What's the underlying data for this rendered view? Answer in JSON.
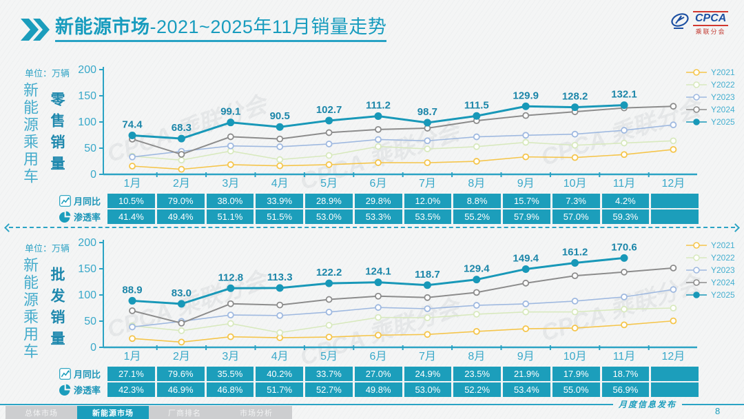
{
  "header": {
    "title_bold": "新能源市场",
    "title_rest": "-2021~2025年11月销量走势",
    "logo_text": "CPCA",
    "logo_subtext": "乘联分会"
  },
  "colors": {
    "accent_teal": "#1B9DBC",
    "axis_teal": "#2AA3C4",
    "tick_label_teal": "#38A8C9",
    "data_label_teal": "#1C86A9",
    "table_cell_teal": "#1C9EBB",
    "legend_text": "#45AFD0"
  },
  "chart_data": [
    {
      "type": "line",
      "title": "零售销量",
      "group_label": "新能源乘用车",
      "unit_label": "单位：万辆",
      "categories": [
        "1月",
        "2月",
        "3月",
        "4月",
        "5月",
        "6月",
        "7月",
        "8月",
        "9月",
        "10月",
        "11月",
        "12月"
      ],
      "ylim": [
        0,
        200
      ],
      "yticks": [
        0,
        50,
        100,
        150,
        200
      ],
      "grid": false,
      "legend_position": "right-top",
      "series": [
        {
          "name": "Y2021",
          "color": "#F5C54B",
          "labeled": false,
          "values": [
            15.8,
            9.7,
            18.5,
            16.3,
            18.5,
            22.3,
            22.2,
            24.9,
            33.4,
            32.1,
            37.8,
            47.5
          ]
        },
        {
          "name": "Y2022",
          "color": "#D8E9BE",
          "labeled": false,
          "values": [
            34.7,
            27.2,
            44.5,
            28.2,
            36.0,
            53.2,
            48.6,
            52.9,
            61.1,
            55.6,
            59.8,
            64.0
          ]
        },
        {
          "name": "Y2023",
          "color": "#9FB9E0",
          "labeled": false,
          "values": [
            33.2,
            43.9,
            54.3,
            52.7,
            58.0,
            66.5,
            64.1,
            71.6,
            74.6,
            76.7,
            84.1,
            94.5
          ]
        },
        {
          "name": "Y2024",
          "color": "#8C8C8C",
          "labeled": false,
          "values": [
            67.3,
            38.2,
            71.8,
            67.6,
            79.7,
            85.7,
            88.1,
            102.5,
            112.3,
            119.5,
            126.8,
            130.0
          ]
        },
        {
          "name": "Y2025",
          "color": "#1898B8",
          "labeled": true,
          "values": [
            74.4,
            68.3,
            99.1,
            90.5,
            102.7,
            111.2,
            98.7,
            111.5,
            129.9,
            128.2,
            132.1,
            null
          ]
        }
      ]
    },
    {
      "type": "line",
      "title": "批发销量",
      "group_label": "新能源乘用车",
      "unit_label": "单位：万辆",
      "categories": [
        "1月",
        "2月",
        "3月",
        "4月",
        "5月",
        "6月",
        "7月",
        "8月",
        "9月",
        "10月",
        "11月",
        "12月"
      ],
      "ylim": [
        0,
        200
      ],
      "yticks": [
        0,
        50,
        100,
        150,
        200
      ],
      "grid": false,
      "legend_position": "right-top",
      "series": [
        {
          "name": "Y2021",
          "color": "#F5C54B",
          "labeled": false,
          "values": [
            16.8,
            10.0,
            20.2,
            18.4,
            19.6,
            23.2,
            24.6,
            30.4,
            35.5,
            36.8,
            42.9,
            50.5
          ]
        },
        {
          "name": "Y2022",
          "color": "#D8E9BE",
          "labeled": false,
          "values": [
            41.2,
            31.7,
            45.5,
            28.0,
            42.1,
            57.1,
            56.4,
            63.2,
            67.5,
            67.6,
            72.8,
            75.0
          ]
        },
        {
          "name": "Y2023",
          "color": "#9FB9E0",
          "labeled": false,
          "values": [
            38.9,
            49.6,
            61.7,
            60.7,
            67.3,
            76.1,
            73.7,
            80.2,
            83.0,
            88.3,
            96.2,
            110.4
          ]
        },
        {
          "name": "Y2024",
          "color": "#8C8C8C",
          "labeled": false,
          "values": [
            69.9,
            46.2,
            83.2,
            80.8,
            91.4,
            97.7,
            95.0,
            104.8,
            122.6,
            136.7,
            143.7,
            151.5
          ]
        },
        {
          "name": "Y2025",
          "color": "#1898B8",
          "labeled": true,
          "values": [
            88.9,
            83.0,
            112.8,
            113.3,
            122.2,
            124.1,
            118.7,
            129.4,
            149.4,
            161.2,
            170.6,
            null
          ]
        }
      ]
    }
  ],
  "tables": [
    {
      "rows": [
        {
          "icon": "trend-icon",
          "label": "月同比",
          "values": [
            "10.5%",
            "79.0%",
            "38.0%",
            "33.9%",
            "28.9%",
            "29.8%",
            "12.0%",
            "8.8%",
            "15.7%",
            "7.3%",
            "4.2%",
            ""
          ]
        },
        {
          "icon": "pie-icon",
          "label": "渗透率",
          "values": [
            "41.4%",
            "49.4%",
            "51.1%",
            "51.5%",
            "53.0%",
            "53.3%",
            "53.5%",
            "55.2%",
            "57.9%",
            "57.0%",
            "59.3%",
            ""
          ]
        }
      ]
    },
    {
      "rows": [
        {
          "icon": "trend-icon",
          "label": "月同比",
          "values": [
            "27.1%",
            "79.6%",
            "35.5%",
            "40.2%",
            "33.7%",
            "27.0%",
            "24.9%",
            "23.5%",
            "21.9%",
            "17.9%",
            "18.7%",
            ""
          ]
        },
        {
          "icon": "pie-icon",
          "label": "渗透率",
          "values": [
            "42.3%",
            "46.9%",
            "46.8%",
            "51.7%",
            "52.7%",
            "49.8%",
            "53.0%",
            "52.2%",
            "53.4%",
            "55.0%",
            "56.9%",
            ""
          ]
        }
      ]
    }
  ],
  "watermark": "CPCA 乘联分会",
  "footer": {
    "release_label": "月度信息发布",
    "page_number": "8",
    "tabs": [
      {
        "label": "总体市场",
        "active": false
      },
      {
        "label": "新能源市场",
        "active": true
      },
      {
        "label": "厂商排名",
        "active": false
      },
      {
        "label": "市场分析",
        "active": false
      }
    ]
  }
}
